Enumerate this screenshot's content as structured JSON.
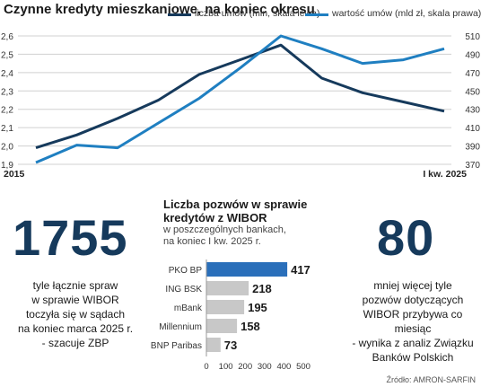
{
  "chart_data": [
    {
      "type": "line",
      "title": "Czynne kredyty mieszkaniowe, na koniec okresu",
      "x_tick_labels": [
        "2015",
        "I kw. 2025"
      ],
      "left_axis": {
        "ticks": [
          "1,9",
          "2,0",
          "2,1",
          "2,2",
          "2,3",
          "2,4",
          "2,5",
          "2,6"
        ],
        "ylim": [
          1.9,
          2.6
        ]
      },
      "right_axis": {
        "ticks": [
          "370",
          "390",
          "410",
          "430",
          "450",
          "470",
          "490",
          "510"
        ],
        "ylim": [
          370,
          510
        ]
      },
      "grid": true,
      "legend": "top-right",
      "series": [
        {
          "name": "liczba umów (mln, skala lewa)",
          "axis": "left",
          "color": "#163a5c",
          "values": [
            1.99,
            2.06,
            2.15,
            2.25,
            2.39,
            2.47,
            2.55,
            2.37,
            2.29,
            2.24,
            2.19
          ]
        },
        {
          "name": "wartość umów (mld zł, skala prawa)",
          "axis": "right",
          "color": "#1f7fc1",
          "values": [
            372,
            391,
            388,
            415,
            442,
            475,
            510,
            496,
            480,
            484,
            496
          ]
        }
      ]
    },
    {
      "type": "bar",
      "title": "Liczba pozwów w sprawie kredytów z WIBOR",
      "subtitle": "w poszczególnych bankach, na koniec I kw. 2025 r.",
      "orientation": "horizontal",
      "categories": [
        "PKO BP",
        "ING BSK",
        "mBank",
        "Millennium",
        "BNP Paribas"
      ],
      "values": [
        417,
        218,
        195,
        158,
        73
      ],
      "labels": [
        "417",
        "218",
        "195",
        "158",
        "73"
      ],
      "highlight": "PKO BP",
      "highlight_color": "#2a6fba",
      "bar_color": "#c8c8c8",
      "x_ticks": [
        "0",
        "100",
        "200",
        "300",
        "400",
        "500"
      ],
      "xlim": [
        0,
        500
      ]
    }
  ],
  "stat_left": {
    "number": "1755",
    "text": [
      "tyle łącznie spraw",
      "w sprawie WIBOR",
      "toczyła się w sądach",
      "na koniec marca 2025 r.",
      "- szacuje ZBP"
    ]
  },
  "stat_right": {
    "number": "80",
    "text": [
      "mniej więcej tyle",
      "pozwów dotyczących",
      "WIBOR przybywa co miesiąc",
      "- wynika z analiz Związku",
      "Banków Polskich"
    ]
  },
  "source": "Źródło: AMRON-SARFIN"
}
